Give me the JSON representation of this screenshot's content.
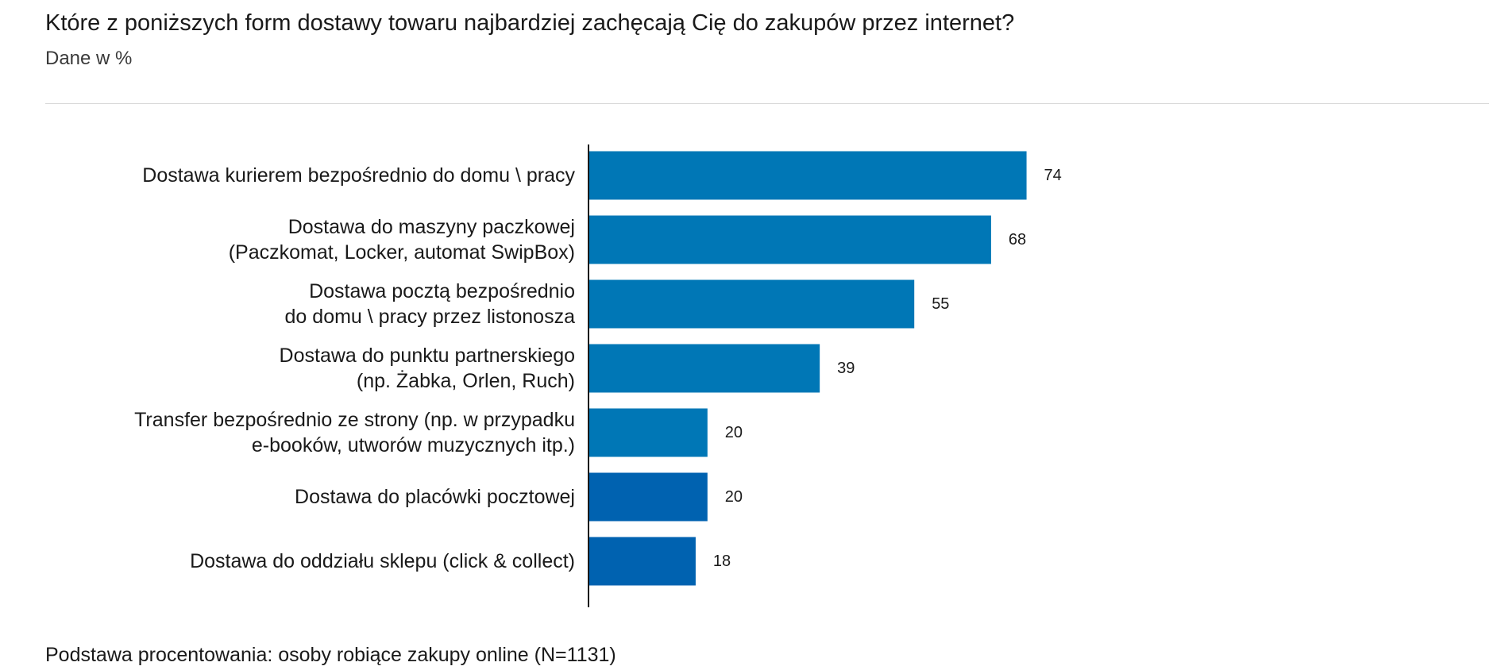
{
  "header": {
    "title": "Które z poniższych form dostawy towaru najbardziej zachęcają Cię do zakupów przez internet?",
    "subtitle": "Dane w %"
  },
  "footer": {
    "note": "Podstawa procentowania: osoby robiące zakupy online (N=1131)"
  },
  "chart_data": {
    "type": "bar",
    "orientation": "horizontal",
    "title": "Które z poniższych form dostawy towaru najbardziej zachęcają Cię do zakupów przez internet?",
    "subtitle": "Dane w %",
    "xlabel": "",
    "ylabel": "",
    "grid": false,
    "legend": "none",
    "categories": [
      [
        "Dostawa kurierem bezpośrednio do domu \\ pracy"
      ],
      [
        "Dostawa do maszyny paczkowej",
        "(Paczkomat, Locker, automat SwipBox)"
      ],
      [
        "Dostawa pocztą bezpośrednio",
        "do domu \\ pracy przez listonosza"
      ],
      [
        "Dostawa do punktu partnerskiego",
        "(np. Żabka, Orlen, Ruch)"
      ],
      [
        "Transfer bezpośrednio ze strony  (np. w przypadku",
        "e-booków, utworów muzycznych itp.)"
      ],
      [
        "Dostawa do placówki pocztowej"
      ],
      [
        "Dostawa do oddziału sklepu (click & collect)"
      ]
    ],
    "values": [
      74,
      68,
      55,
      39,
      20,
      20,
      18
    ],
    "value_labels": [
      "74",
      "68",
      "55",
      "39",
      "20",
      "20",
      "18"
    ],
    "bar_colors": [
      "#0077b6",
      "#0077b6",
      "#0077b6",
      "#0077b6",
      "#0077b6",
      "#0062b0",
      "#0062b0"
    ],
    "xlim": [
      0,
      100
    ]
  }
}
